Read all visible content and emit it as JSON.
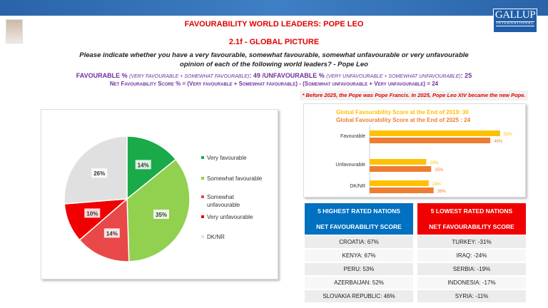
{
  "header": {
    "title": "FAVOURABILITY WORLD LEADERS: POPE LEO",
    "subtitle": "2.1f - GLOBAL PICTURE",
    "question": "Please indicate whether you have a very favourable, somewhat favourable, somewhat unfavourable or very unfavourable opinion of each of the following world leaders? - Pope Leo",
    "fav_a": "FAVOURABLE % ",
    "fav_b": "(VERY FAVOURABLE + SOMEWHAT FAVOURABLE)",
    "fav_c": ": 49 /UNFAVOURABLE % ",
    "fav_d": "(VERY UNFAVOURABLE + SOMEWHAT UNFAVOURABLE)",
    "fav_e": ": 25",
    "net": "Net Favourability Score % =  (Very favourable + Somewhat favourable) - (Somewhat unfavourable + Very unfavourable) =  24",
    "note": "* Before 2025, the Pope was Pope Francis. In 2025, Pope Leo XIV became the new Pope."
  },
  "logo": {
    "name": "GALLUP",
    "sub": "INTERNATIONAL"
  },
  "chart_data": [
    {
      "type": "pie",
      "labels": [
        "Very favourable",
        "Somewhat favourable",
        "Somewhat unfavourable",
        "Very unfavourable",
        "DK/NR"
      ],
      "values": [
        14,
        35,
        14,
        10,
        26
      ],
      "data_labels": [
        "14%",
        "35%",
        "14%",
        "10%",
        "26%"
      ],
      "colors": [
        "#1aaa4a",
        "#92d050",
        "#e84848",
        "#f00000",
        "#e0e0e0"
      ],
      "legend": "right"
    },
    {
      "type": "bar",
      "orientation": "horizontal",
      "title_2019": "Global Favourability Score  at the End of 2019: 30",
      "title_2025": "Global Favourability Score  at the End of 2025 : 24",
      "categories": [
        "Favourable",
        "Unfavourable",
        "DK/NR"
      ],
      "series": [
        {
          "values": [
            53,
            23,
            24
          ],
          "labels": [
            "53%",
            "23%",
            "24%"
          ],
          "color": "#ffc000"
        },
        {
          "values": [
            49,
            25,
            26
          ],
          "labels": [
            "49%",
            "25%",
            "26%"
          ],
          "color": "#ed7d31"
        }
      ]
    }
  ],
  "tables": {
    "highest": {
      "title": "5 HIGHEST RATED NATIONS",
      "subtitle": "NET FAVOURABILITY SCORE",
      "color": "#0070c0",
      "rows": [
        "CROATIA: 67%",
        "KENYA: 67%",
        "PERU: 53%",
        "AZERBAIJAN: 52%",
        "SLOVAKIA REPUBLIC: 46%"
      ]
    },
    "lowest": {
      "title": "5 LOWEST RATED NATIONS",
      "subtitle": "NET FAVOURABILITY SCORE",
      "color": "#f00000",
      "rows": [
        "TURKEY: -31%",
        "IRAQ: -24%",
        "SERBIA: -19%",
        "INDONESIA: -17%",
        "SYRIA: -11%"
      ]
    }
  }
}
